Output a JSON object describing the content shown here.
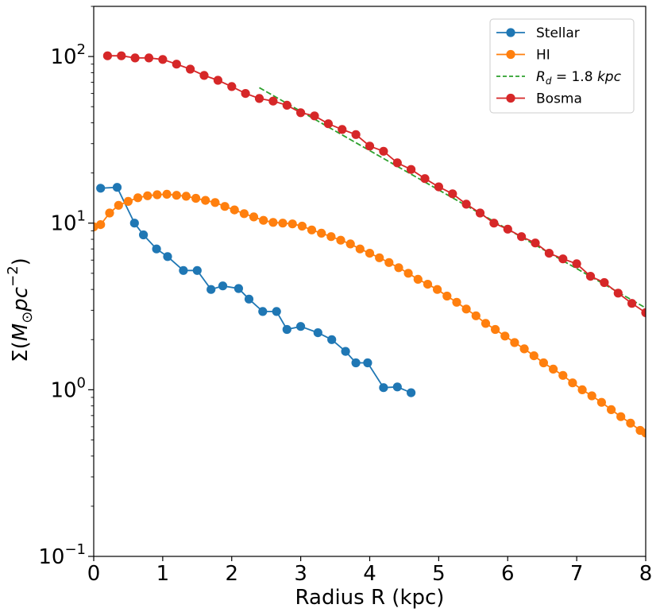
{
  "chart_data": {
    "type": "line",
    "title": "",
    "xlabel": "Radius R (kpc)",
    "ylabel": "Σ(M⊙pc⁻²)",
    "yscale": "log",
    "xlim": [
      0,
      8
    ],
    "ylim": [
      0.1,
      200
    ],
    "x_ticks": [
      {
        "value": 0,
        "label": "0"
      },
      {
        "value": 1,
        "label": "1"
      },
      {
        "value": 2,
        "label": "2"
      },
      {
        "value": 3,
        "label": "3"
      },
      {
        "value": 4,
        "label": "4"
      },
      {
        "value": 5,
        "label": "5"
      },
      {
        "value": 6,
        "label": "6"
      },
      {
        "value": 7,
        "label": "7"
      },
      {
        "value": 8,
        "label": "8"
      }
    ],
    "y_ticks": [
      {
        "value": 0.1,
        "base": "10",
        "exp": "−1"
      },
      {
        "value": 1,
        "base": "10",
        "exp": "0"
      },
      {
        "value": 10,
        "base": "10",
        "exp": "1"
      },
      {
        "value": 100,
        "base": "10",
        "exp": "2"
      }
    ],
    "legend_position": "top-right",
    "series": [
      {
        "name": "Stellar",
        "color": "#1f77b4",
        "style": "line-marker",
        "x": [
          0.1,
          0.34,
          0.59,
          0.72,
          0.91,
          1.07,
          1.3,
          1.5,
          1.7,
          1.87,
          2.1,
          2.25,
          2.45,
          2.65,
          2.8,
          3.0,
          3.25,
          3.45,
          3.65,
          3.8,
          3.97,
          4.2,
          4.4,
          4.6
        ],
        "y": [
          16.2,
          16.4,
          10.0,
          8.5,
          7.0,
          6.3,
          5.2,
          5.2,
          4.0,
          4.2,
          4.05,
          3.5,
          2.95,
          2.95,
          2.3,
          2.4,
          2.2,
          2.0,
          1.7,
          1.45,
          1.45,
          1.03,
          1.04,
          0.96
        ]
      },
      {
        "name": "HI",
        "color": "#ff7f0e",
        "style": "line-marker",
        "x": [
          0.0,
          0.1,
          0.23,
          0.36,
          0.5,
          0.64,
          0.78,
          0.92,
          1.06,
          1.2,
          1.34,
          1.48,
          1.62,
          1.76,
          1.9,
          2.04,
          2.18,
          2.32,
          2.46,
          2.6,
          2.74,
          2.88,
          3.02,
          3.16,
          3.3,
          3.44,
          3.58,
          3.72,
          3.86,
          4.0,
          4.14,
          4.28,
          4.42,
          4.56,
          4.7,
          4.84,
          4.98,
          5.12,
          5.26,
          5.4,
          5.54,
          5.68,
          5.82,
          5.96,
          6.1,
          6.24,
          6.38,
          6.52,
          6.66,
          6.8,
          6.94,
          7.08,
          7.22,
          7.36,
          7.5,
          7.64,
          7.78,
          7.92,
          8.0
        ],
        "y": [
          9.5,
          9.8,
          11.5,
          12.8,
          13.5,
          14.2,
          14.6,
          14.8,
          14.9,
          14.7,
          14.5,
          14.1,
          13.7,
          13.3,
          12.6,
          12.0,
          11.4,
          10.9,
          10.4,
          10.1,
          10.0,
          9.9,
          9.6,
          9.1,
          8.7,
          8.3,
          7.9,
          7.5,
          7.0,
          6.6,
          6.2,
          5.8,
          5.4,
          5.0,
          4.6,
          4.3,
          4.0,
          3.65,
          3.35,
          3.05,
          2.78,
          2.5,
          2.3,
          2.1,
          1.92,
          1.76,
          1.6,
          1.45,
          1.33,
          1.22,
          1.1,
          1.0,
          0.92,
          0.84,
          0.76,
          0.69,
          0.63,
          0.57,
          0.55
        ]
      },
      {
        "name": "R_d = 1.8 kpc",
        "color": "#2ca02c",
        "style": "dashed",
        "x": [
          2.4,
          8.0
        ],
        "y": [
          65.0,
          3.1
        ]
      },
      {
        "name": "Bosma",
        "color": "#d62728",
        "style": "line-marker",
        "x": [
          0.2,
          0.4,
          0.6,
          0.8,
          1.0,
          1.2,
          1.4,
          1.6,
          1.8,
          2.0,
          2.2,
          2.4,
          2.6,
          2.8,
          3.0,
          3.2,
          3.4,
          3.6,
          3.8,
          4.0,
          4.2,
          4.4,
          4.6,
          4.8,
          5.0,
          5.2,
          5.4,
          5.6,
          5.8,
          6.0,
          6.2,
          6.4,
          6.6,
          6.8,
          7.0,
          7.2,
          7.4,
          7.6,
          7.8,
          8.0
        ],
        "y": [
          101,
          101,
          98,
          98,
          96,
          90,
          84,
          77,
          72,
          66,
          60,
          56,
          54,
          51,
          46,
          44,
          39.5,
          36.5,
          34,
          29,
          27,
          23,
          21,
          18.5,
          16.5,
          15,
          13,
          11.5,
          10,
          9.2,
          8.3,
          7.6,
          6.6,
          6.1,
          5.7,
          4.8,
          4.4,
          3.8,
          3.3,
          2.9
        ]
      }
    ],
    "legend": [
      {
        "label": "Stellar",
        "kind": "plain"
      },
      {
        "label": "HI",
        "kind": "plain"
      },
      {
        "label": "R_d = 1.8 kpc",
        "kind": "math",
        "sym": "R",
        "sub": "d",
        "rest": " = 1.8 ",
        "unit": "kpc"
      },
      {
        "label": "Bosma",
        "kind": "plain"
      }
    ]
  }
}
